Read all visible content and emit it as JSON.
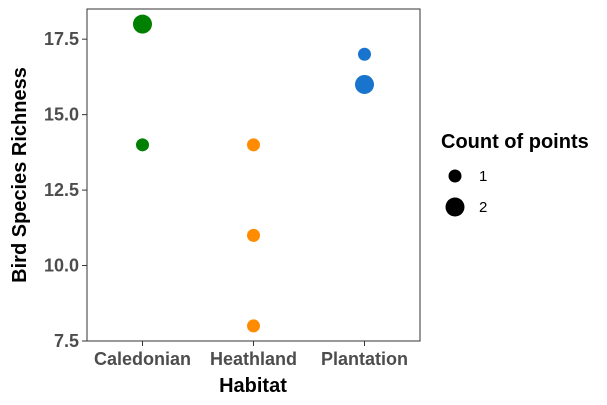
{
  "chart_data": {
    "type": "scatter",
    "xlabel": "Habitat",
    "ylabel": "Bird Species Richness",
    "categories": [
      "Caledonian",
      "Heathland",
      "Plantation"
    ],
    "ylim": [
      7.5,
      18.5
    ],
    "yticks": [
      "7.5",
      "10.0",
      "12.5",
      "15.0",
      "17.5"
    ],
    "grid": false,
    "legend": {
      "title": "Count of points",
      "placement": "right",
      "entries": [
        {
          "label": "1",
          "count": 1
        },
        {
          "label": "2",
          "count": 2
        }
      ]
    },
    "points": [
      {
        "category": "Caledonian",
        "y": 18,
        "count": 2,
        "color": "#008000"
      },
      {
        "category": "Caledonian",
        "y": 14,
        "count": 1,
        "color": "#008000"
      },
      {
        "category": "Heathland",
        "y": 14,
        "count": 1,
        "color": "#FF8C00"
      },
      {
        "category": "Heathland",
        "y": 11,
        "count": 1,
        "color": "#FF8C00"
      },
      {
        "category": "Heathland",
        "y": 8,
        "count": 1,
        "color": "#FF8C00"
      },
      {
        "category": "Plantation",
        "y": 17,
        "count": 1,
        "color": "#1874CD"
      },
      {
        "category": "Plantation",
        "y": 16,
        "count": 2,
        "color": "#1874CD"
      }
    ]
  }
}
